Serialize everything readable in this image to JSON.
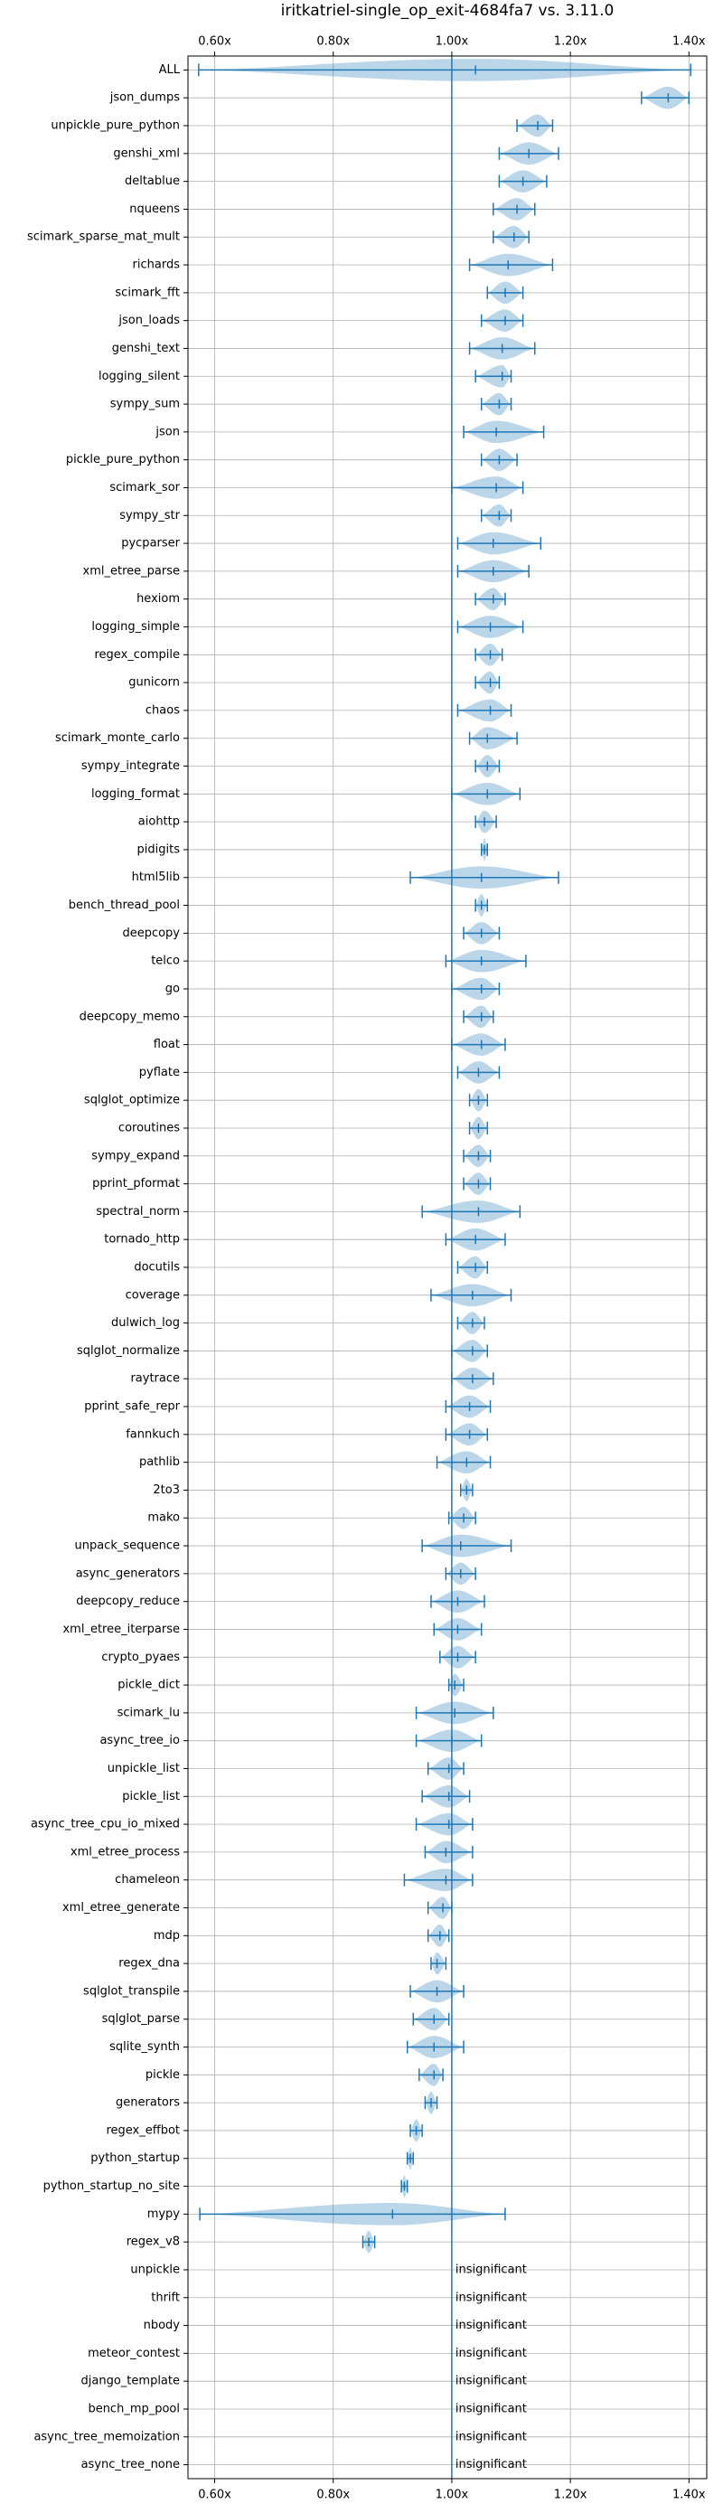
{
  "chart_data": {
    "type": "violin",
    "title": "iritkatriel-single_op_exit-4684fa7 vs. 3.11.0",
    "categories": [
      "ALL",
      "json_dumps",
      "unpickle_pure_python",
      "genshi_xml",
      "deltablue",
      "nqueens",
      "scimark_sparse_mat_mult",
      "richards",
      "scimark_fft",
      "json_loads",
      "genshi_text",
      "logging_silent",
      "sympy_sum",
      "json",
      "pickle_pure_python",
      "scimark_sor",
      "sympy_str",
      "pycparser",
      "xml_etree_parse",
      "hexiom",
      "logging_simple",
      "regex_compile",
      "gunicorn",
      "chaos",
      "scimark_monte_carlo",
      "sympy_integrate",
      "logging_format",
      "aiohttp",
      "pidigits",
      "html5lib",
      "bench_thread_pool",
      "deepcopy",
      "telco",
      "go",
      "deepcopy_memo",
      "float",
      "pyflate",
      "sqlglot_optimize",
      "coroutines",
      "sympy_expand",
      "pprint_pformat",
      "spectral_norm",
      "tornado_http",
      "docutils",
      "coverage",
      "dulwich_log",
      "sqlglot_normalize",
      "raytrace",
      "pprint_safe_repr",
      "fannkuch",
      "pathlib",
      "2to3",
      "mako",
      "unpack_sequence",
      "async_generators",
      "deepcopy_reduce",
      "xml_etree_iterparse",
      "crypto_pyaes",
      "pickle_dict",
      "scimark_lu",
      "async_tree_io",
      "unpickle_list",
      "pickle_list",
      "async_tree_cpu_io_mixed",
      "xml_etree_process",
      "chameleon",
      "xml_etree_generate",
      "mdp",
      "regex_dna",
      "sqlglot_transpile",
      "sqlglot_parse",
      "sqlite_synth",
      "pickle",
      "generators",
      "regex_effbot",
      "python_startup",
      "python_startup_no_site",
      "mypy",
      "regex_v8",
      "unpickle",
      "thrift",
      "nbody",
      "meteor_contest",
      "django_template",
      "bench_mp_pool",
      "async_tree_memoization",
      "async_tree_none"
    ],
    "min": [
      0.573,
      1.32,
      1.11,
      1.08,
      1.08,
      1.07,
      1.07,
      1.03,
      1.06,
      1.05,
      1.03,
      1.04,
      1.05,
      1.02,
      1.05,
      1.0,
      1.05,
      1.01,
      1.01,
      1.04,
      1.01,
      1.04,
      1.04,
      1.01,
      1.03,
      1.04,
      1.0,
      1.04,
      1.05,
      0.93,
      1.04,
      1.02,
      0.99,
      1.0,
      1.02,
      1.0,
      1.01,
      1.03,
      1.03,
      1.02,
      1.02,
      0.95,
      0.99,
      1.01,
      0.965,
      1.01,
      1.0,
      1.0,
      0.99,
      0.99,
      0.975,
      1.015,
      0.995,
      0.95,
      0.99,
      0.965,
      0.97,
      0.98,
      0.995,
      0.94,
      0.94,
      0.96,
      0.95,
      0.94,
      0.955,
      0.92,
      0.96,
      0.96,
      0.965,
      0.93,
      0.935,
      0.925,
      0.945,
      0.955,
      0.93,
      0.925,
      0.915,
      0.575,
      0.85,
      null,
      null,
      null,
      null,
      null,
      null,
      null,
      null
    ],
    "median": [
      1.04,
      1.365,
      1.145,
      1.13,
      1.12,
      1.11,
      1.105,
      1.095,
      1.09,
      1.09,
      1.085,
      1.085,
      1.08,
      1.075,
      1.08,
      1.075,
      1.08,
      1.07,
      1.07,
      1.07,
      1.065,
      1.065,
      1.065,
      1.065,
      1.06,
      1.06,
      1.06,
      1.055,
      1.055,
      1.05,
      1.05,
      1.05,
      1.05,
      1.05,
      1.05,
      1.05,
      1.045,
      1.045,
      1.045,
      1.045,
      1.045,
      1.045,
      1.04,
      1.04,
      1.035,
      1.035,
      1.035,
      1.035,
      1.03,
      1.03,
      1.025,
      1.025,
      1.02,
      1.015,
      1.015,
      1.01,
      1.01,
      1.01,
      1.005,
      1.005,
      1.0,
      0.995,
      0.995,
      0.995,
      0.99,
      0.99,
      0.985,
      0.98,
      0.975,
      0.975,
      0.97,
      0.97,
      0.97,
      0.965,
      0.94,
      0.93,
      0.92,
      0.9,
      0.86,
      null,
      null,
      null,
      null,
      null,
      null,
      null,
      null
    ],
    "max": [
      1.403,
      1.4,
      1.17,
      1.18,
      1.16,
      1.14,
      1.13,
      1.17,
      1.12,
      1.12,
      1.14,
      1.1,
      1.1,
      1.155,
      1.11,
      1.12,
      1.1,
      1.15,
      1.13,
      1.09,
      1.12,
      1.085,
      1.08,
      1.1,
      1.11,
      1.08,
      1.115,
      1.075,
      1.06,
      1.18,
      1.06,
      1.08,
      1.125,
      1.08,
      1.07,
      1.09,
      1.08,
      1.06,
      1.06,
      1.065,
      1.065,
      1.115,
      1.09,
      1.06,
      1.1,
      1.055,
      1.06,
      1.07,
      1.065,
      1.06,
      1.065,
      1.035,
      1.04,
      1.1,
      1.04,
      1.055,
      1.05,
      1.04,
      1.02,
      1.07,
      1.05,
      1.02,
      1.03,
      1.035,
      1.035,
      1.035,
      1.0,
      0.995,
      0.99,
      1.02,
      0.995,
      1.02,
      0.985,
      0.975,
      0.95,
      0.935,
      0.925,
      1.09,
      0.87,
      null,
      null,
      null,
      null,
      null,
      null,
      null,
      null
    ],
    "row_notes": [
      null,
      null,
      null,
      null,
      null,
      null,
      null,
      null,
      null,
      null,
      null,
      null,
      null,
      null,
      null,
      null,
      null,
      null,
      null,
      null,
      null,
      null,
      null,
      null,
      null,
      null,
      null,
      null,
      null,
      null,
      null,
      null,
      null,
      null,
      null,
      null,
      null,
      null,
      null,
      null,
      null,
      null,
      null,
      null,
      null,
      null,
      null,
      null,
      null,
      null,
      null,
      null,
      null,
      null,
      null,
      null,
      null,
      null,
      null,
      null,
      null,
      null,
      null,
      null,
      null,
      null,
      null,
      null,
      null,
      null,
      null,
      null,
      null,
      null,
      null,
      null,
      null,
      null,
      null,
      "insignificant",
      "insignificant",
      "insignificant",
      "insignificant",
      "insignificant",
      "insignificant",
      "insignificant",
      "insignificant"
    ],
    "reference_line": 1.0,
    "color": "#1f77b4",
    "xlim": [
      0.555,
      1.43
    ],
    "xticks": [
      {
        "value": 0.6,
        "label": "0.60x"
      },
      {
        "value": 0.8,
        "label": "0.80x"
      },
      {
        "value": 1.0,
        "label": "1.00x"
      },
      {
        "value": 1.2,
        "label": "1.20x"
      },
      {
        "value": 1.4,
        "label": "1.40x"
      }
    ],
    "grid": true
  }
}
